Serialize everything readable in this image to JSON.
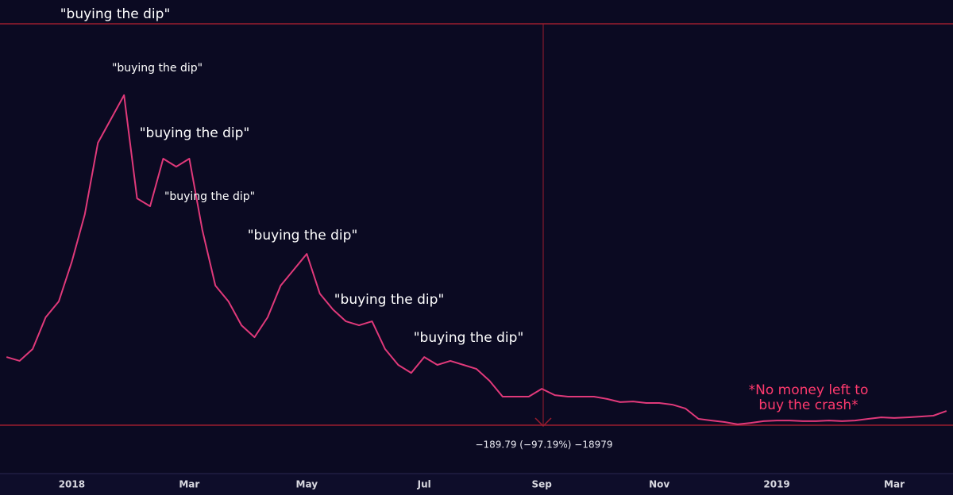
{
  "chart_data": {
    "type": "line",
    "categories": [
      null,
      null,
      null,
      null,
      null,
      "2018",
      null,
      null,
      null,
      null,
      null,
      null,
      null,
      null,
      "Mar",
      null,
      null,
      null,
      null,
      null,
      null,
      null,
      null,
      "May",
      null,
      null,
      null,
      null,
      null,
      null,
      null,
      null,
      "Jul",
      null,
      null,
      null,
      null,
      null,
      null,
      null,
      null,
      "Sep",
      null,
      null,
      null,
      null,
      null,
      null,
      null,
      null,
      "Nov",
      null,
      null,
      null,
      null,
      null,
      null,
      null,
      null,
      "2019",
      null,
      null,
      null,
      null,
      null,
      null,
      null,
      null,
      "Mar",
      null,
      null,
      null,
      null
    ],
    "series": [
      {
        "color": "#e0397a",
        "values": [
          37.7,
          35.9,
          41.5,
          56.5,
          64,
          82.7,
          105.2,
          139,
          150.2,
          161.5,
          112.7,
          109,
          131.5,
          127.7,
          131.5,
          97.7,
          71.5,
          64,
          52.7,
          47.1,
          56.5,
          71.5,
          79,
          86.5,
          67.7,
          60.2,
          54.6,
          52.7,
          54.6,
          41.5,
          34,
          30.2,
          37.7,
          34,
          35.9,
          34,
          32.1,
          26.5,
          19,
          19,
          19,
          22.7,
          19.7,
          19,
          19,
          19,
          17.9,
          16.4,
          16.7,
          16,
          16,
          15.2,
          13.4,
          8.5,
          7.7,
          7,
          5.9,
          6.6,
          7.4,
          7.7,
          7.7,
          7.4,
          7.4,
          7.7,
          7.4,
          7.7,
          8.5,
          9.2,
          8.9,
          9.2,
          9.6,
          10,
          12.2
        ]
      }
    ],
    "ylim": [
      -18.5,
      206.5
    ],
    "annotations": [
      "\"buying the dip\"",
      "\"buying the dip\"",
      "\"buying the dip\"",
      "\"buying the dip\"",
      "\"buying the dip\"",
      "\"buying the dip\"",
      "\"buying the dip\""
    ],
    "note": [
      "*No money left to",
      "buy the crash*"
    ],
    "measurement": "−189.79 (−97.19%) −18979"
  }
}
